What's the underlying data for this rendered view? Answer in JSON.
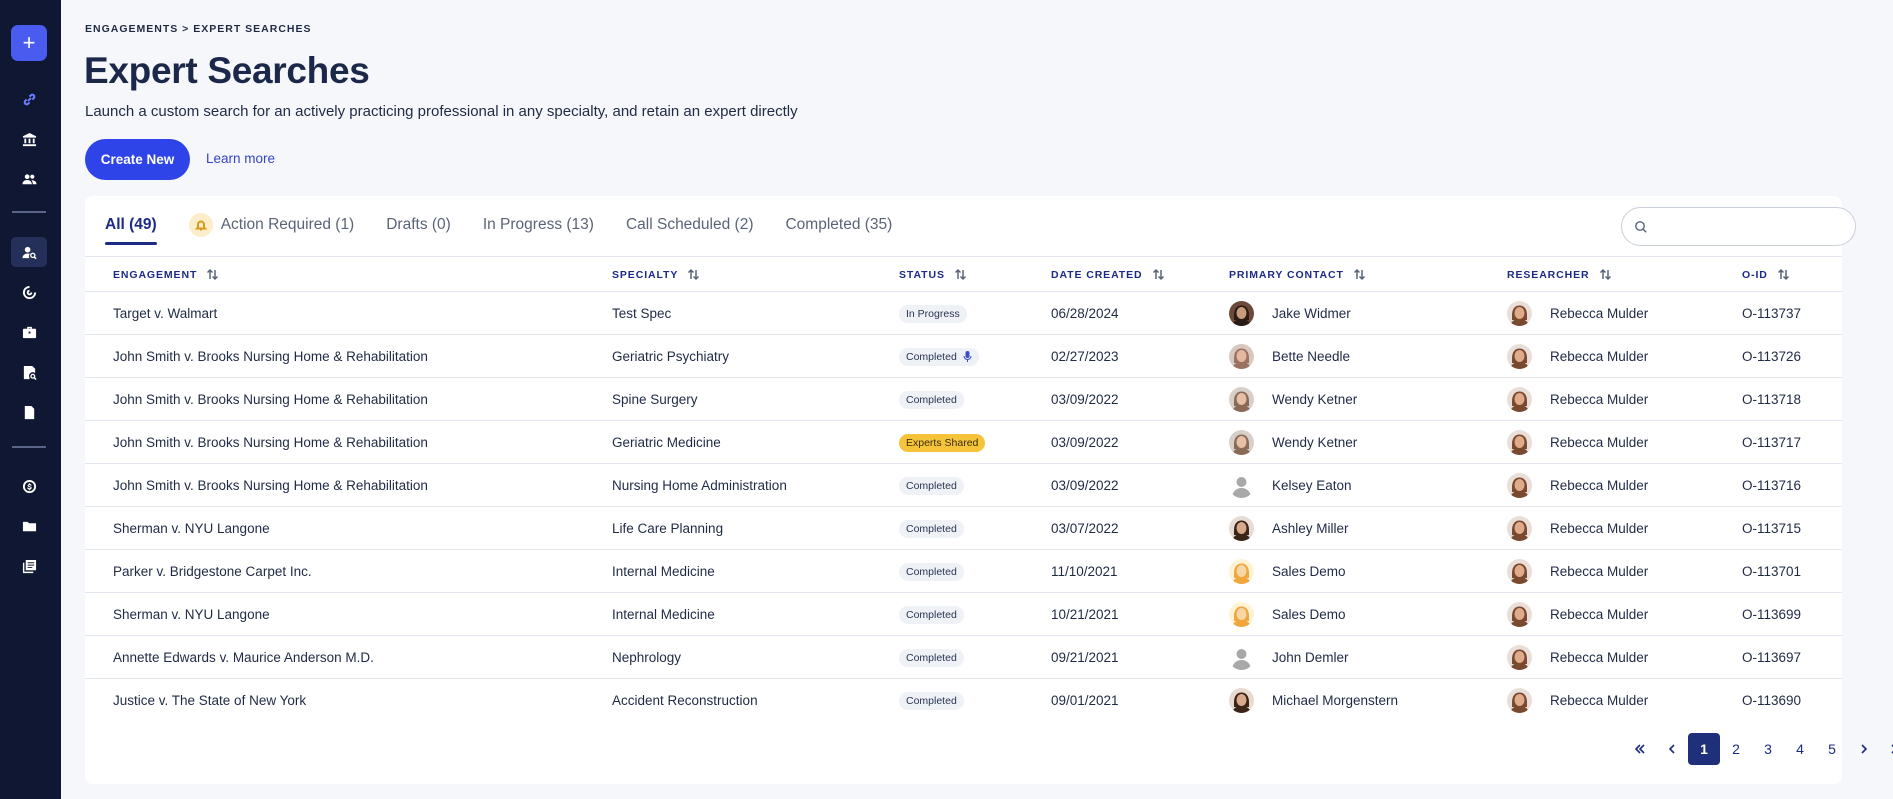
{
  "sidebar": {
    "add_label": "+",
    "icons": [
      "link-icon",
      "bank-icon",
      "people-icon",
      "user-search-icon",
      "radar-icon",
      "briefcase-icon",
      "report-search-icon",
      "document-icon",
      "coin-icon",
      "folder-icon",
      "library-icon"
    ]
  },
  "header": {
    "breadcrumb": "ENGAGEMENTS > EXPERT SEARCHES",
    "title": "Expert Searches",
    "subtitle": "Launch a custom search for an actively practicing professional in any specialty, and retain an expert directly",
    "create_label": "Create New",
    "learn_more_label": "Learn more"
  },
  "tabs": [
    {
      "label": "All (49)",
      "active": true
    },
    {
      "label": "Action Required (1)",
      "active": false
    },
    {
      "label": "Drafts (0)",
      "active": false
    },
    {
      "label": "In Progress (13)",
      "active": false
    },
    {
      "label": "Call Scheduled (2)",
      "active": false
    },
    {
      "label": "Completed (35)",
      "active": false
    }
  ],
  "search": {
    "placeholder": "",
    "value": ""
  },
  "columns": {
    "engagement": "ENGAGEMENT",
    "specialty": "SPECIALTY",
    "status": "STATUS",
    "date_created": "DATE CREATED",
    "primary_contact": "PRIMARY CONTACT",
    "researcher": "RESEARCHER",
    "oid": "O-ID"
  },
  "rows": [
    {
      "engagement": "Target v. Walmart",
      "specialty": "Test Spec",
      "status": "In Progress",
      "date": "06/28/2024",
      "contact": "Jake Widmer",
      "researcher": "Rebecca Mulder",
      "oid": "O-113737"
    },
    {
      "engagement": "John Smith v. Brooks Nursing Home & Rehabilitation",
      "specialty": "Geriatric Psychiatry",
      "status": "Completed",
      "date": "02/27/2023",
      "contact": "Bette Needle",
      "researcher": "Rebecca Mulder",
      "oid": "O-113726"
    },
    {
      "engagement": "John Smith v. Brooks Nursing Home & Rehabilitation",
      "specialty": "Spine Surgery",
      "status": "Completed",
      "date": "03/09/2022",
      "contact": "Wendy Ketner",
      "researcher": "Rebecca Mulder",
      "oid": "O-113718"
    },
    {
      "engagement": "John Smith v. Brooks Nursing Home & Rehabilitation",
      "specialty": "Geriatric Medicine",
      "status": "Experts Shared",
      "date": "03/09/2022",
      "contact": "Wendy Ketner",
      "researcher": "Rebecca Mulder",
      "oid": "O-113717"
    },
    {
      "engagement": "John Smith v. Brooks Nursing Home & Rehabilitation",
      "specialty": "Nursing Home Administration",
      "status": "Completed",
      "date": "03/09/2022",
      "contact": "Kelsey Eaton",
      "researcher": "Rebecca Mulder",
      "oid": "O-113716"
    },
    {
      "engagement": "Sherman v. NYU Langone",
      "specialty": "Life Care Planning",
      "status": "Completed",
      "date": "03/07/2022",
      "contact": "Ashley Miller",
      "researcher": "Rebecca Mulder",
      "oid": "O-113715"
    },
    {
      "engagement": "Parker v. Bridgestone Carpet Inc.",
      "specialty": "Internal Medicine",
      "status": "Completed",
      "date": "11/10/2021",
      "contact": "Sales Demo",
      "researcher": "Rebecca Mulder",
      "oid": "O-113701"
    },
    {
      "engagement": "Sherman v. NYU Langone",
      "specialty": "Internal Medicine",
      "status": "Completed",
      "date": "10/21/2021",
      "contact": "Sales Demo",
      "researcher": "Rebecca Mulder",
      "oid": "O-113699"
    },
    {
      "engagement": "Annette Edwards v. Maurice Anderson M.D.",
      "specialty": "Nephrology",
      "status": "Completed",
      "date": "09/21/2021",
      "contact": "John Demler",
      "researcher": "Rebecca Mulder",
      "oid": "O-113697"
    },
    {
      "engagement": "Justice v. The State of New York",
      "specialty": "Accident Reconstruction",
      "status": "Completed",
      "date": "09/01/2021",
      "contact": "Michael Morgenstern",
      "researcher": "Rebecca Mulder",
      "oid": "O-113690"
    }
  ],
  "pagination": {
    "pages": [
      "1",
      "2",
      "3",
      "4",
      "5"
    ],
    "current": "1"
  }
}
